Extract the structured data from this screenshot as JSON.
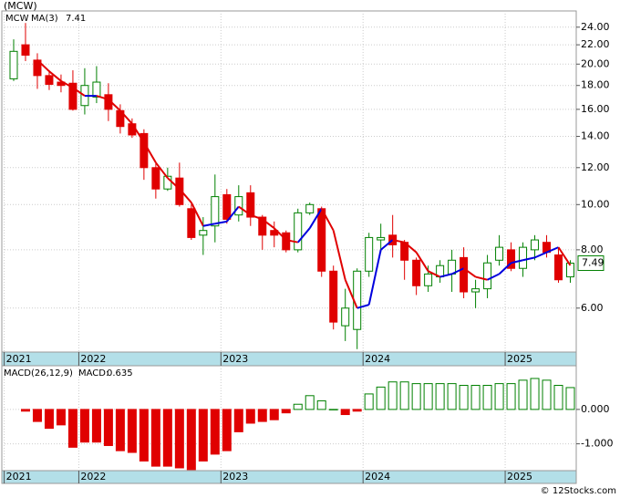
{
  "chart_data": [
    {
      "type": "candlestick",
      "title": "(MCW)",
      "ticker": "MCW",
      "ticker_color": "#008000",
      "ma_label": "MA(3)",
      "ma_label_color": "#0000cc",
      "candles": {
        "open": [
          18.6,
          22.0,
          20.4,
          18.9,
          18.3,
          18.2,
          16.3,
          17.0,
          17.2,
          15.9,
          14.9,
          14.2,
          12.0,
          10.8,
          11.4,
          9.8,
          8.6,
          9.0,
          10.5,
          9.5,
          10.6,
          9.4,
          8.8,
          8.7,
          8.0,
          9.6,
          9.8,
          7.2,
          5.5,
          5.4,
          7.2,
          8.4,
          8.6,
          8.3,
          7.6,
          6.7,
          7.0,
          7.1,
          7.7,
          6.5,
          6.6,
          7.6,
          8.0,
          7.3,
          8.0,
          8.3,
          7.8,
          7.0
        ],
        "high": [
          22.6,
          24.5,
          21.1,
          19.4,
          19.0,
          19.4,
          19.6,
          19.8,
          18.2,
          16.4,
          15.3,
          14.5,
          12.3,
          12.0,
          12.3,
          10.0,
          9.4,
          11.6,
          10.8,
          11.0,
          11.0,
          9.5,
          9.2,
          8.8,
          9.8,
          10.1,
          9.9,
          7.4,
          6.6,
          7.3,
          8.7,
          9.1,
          9.5,
          8.4,
          7.7,
          7.4,
          7.6,
          8.0,
          8.1,
          6.9,
          7.8,
          8.6,
          8.3,
          8.3,
          8.6,
          8.6,
          8.1,
          7.6
        ],
        "low": [
          18.4,
          20.3,
          17.7,
          17.6,
          17.4,
          15.9,
          15.6,
          16.5,
          15.1,
          14.2,
          13.9,
          11.3,
          10.3,
          10.7,
          9.9,
          8.4,
          7.8,
          8.3,
          9.1,
          9.2,
          9.0,
          8.0,
          8.1,
          7.9,
          7.9,
          9.5,
          7.0,
          5.4,
          5.1,
          4.9,
          7.0,
          7.9,
          7.7,
          6.9,
          6.4,
          6.5,
          6.8,
          6.5,
          6.3,
          6.0,
          6.3,
          7.4,
          7.2,
          7.0,
          7.6,
          7.7,
          6.8,
          6.8
        ],
        "close": [
          21.3,
          20.9,
          18.9,
          18.1,
          18.0,
          16.0,
          18.0,
          18.3,
          16.0,
          14.7,
          14.1,
          12.0,
          10.8,
          11.5,
          10.0,
          8.5,
          8.8,
          10.4,
          9.3,
          10.4,
          9.4,
          8.6,
          8.6,
          8.0,
          9.6,
          10.0,
          7.2,
          5.6,
          6.0,
          7.2,
          8.5,
          8.5,
          8.2,
          7.6,
          6.7,
          7.1,
          7.4,
          7.6,
          6.5,
          6.6,
          7.5,
          8.1,
          7.3,
          8.1,
          8.4,
          7.9,
          6.9,
          7.49
        ]
      },
      "up_color": "#008000",
      "down_color": "#e00000",
      "ma": {
        "values": [
          null,
          null,
          20.4,
          19.3,
          18.4,
          17.8,
          17.1,
          17.1,
          16.8,
          15.9,
          14.9,
          13.6,
          12.3,
          11.4,
          10.8,
          10.1,
          9.0,
          9.1,
          9.2,
          9.9,
          9.5,
          9.3,
          8.9,
          8.4,
          8.3,
          8.9,
          9.8,
          8.8,
          6.9,
          6.0,
          6.1,
          8.0,
          8.4,
          8.3,
          7.9,
          7.2,
          7.0,
          7.1,
          7.3,
          7.0,
          6.9,
          7.1,
          7.5,
          7.6,
          7.7,
          7.9,
          8.1,
          7.41
        ],
        "up_color": "#0000dd",
        "down_color": "#e00000"
      },
      "log_scale": true,
      "ylim": [
        4.83,
        26.0
      ],
      "yticks": [
        {
          "value": 6,
          "label": "6.00"
        },
        {
          "value": 8,
          "label": "8.00"
        },
        {
          "value": 10,
          "label": "10.00"
        },
        {
          "value": 12,
          "label": "12.00"
        },
        {
          "value": 14,
          "label": "14.00"
        },
        {
          "value": 16,
          "label": "16.00"
        },
        {
          "value": 18,
          "label": "18.00"
        },
        {
          "value": 20,
          "label": "20.00"
        },
        {
          "value": 22,
          "label": "22.00"
        },
        {
          "value": 24,
          "label": "24.00"
        }
      ],
      "xlim": [
        -1,
        47.5
      ],
      "xticks": [
        {
          "value": -0.8,
          "label": "2021"
        },
        {
          "value": 5.5,
          "label": "2022"
        },
        {
          "value": 17.5,
          "label": "2023"
        },
        {
          "value": 29.5,
          "label": "2024"
        },
        {
          "value": 41.5,
          "label": "2025"
        }
      ],
      "grid": true
    },
    {
      "type": "bar",
      "title": "MACD(26,12,9)",
      "value_title": "MACD:",
      "value_title_color": "#0000cc",
      "values": [
        null,
        -0.05,
        -0.35,
        -0.55,
        -0.45,
        -1.1,
        -0.95,
        -0.95,
        -1.05,
        -1.2,
        -1.25,
        -1.5,
        -1.65,
        -1.65,
        -1.7,
        -1.75,
        -1.5,
        -1.3,
        -1.2,
        -0.65,
        -0.4,
        -0.35,
        -0.3,
        -0.1,
        0.15,
        0.4,
        0.25,
        0,
        -0.15,
        -0.05,
        0.45,
        0.65,
        0.8,
        0.8,
        0.75,
        0.75,
        0.75,
        0.75,
        0.7,
        0.7,
        0.7,
        0.75,
        0.75,
        0.85,
        0.9,
        0.85,
        0.7,
        0.635
      ],
      "up_color": "#008000",
      "down_color": "#e00000",
      "ylim": [
        -1.78,
        1.27
      ],
      "yticks": [
        {
          "value": 0,
          "label": "0.000"
        },
        {
          "value": -1,
          "label": "-1.000"
        }
      ],
      "grid": true
    }
  ],
  "footer": "© 12Stocks.com"
}
